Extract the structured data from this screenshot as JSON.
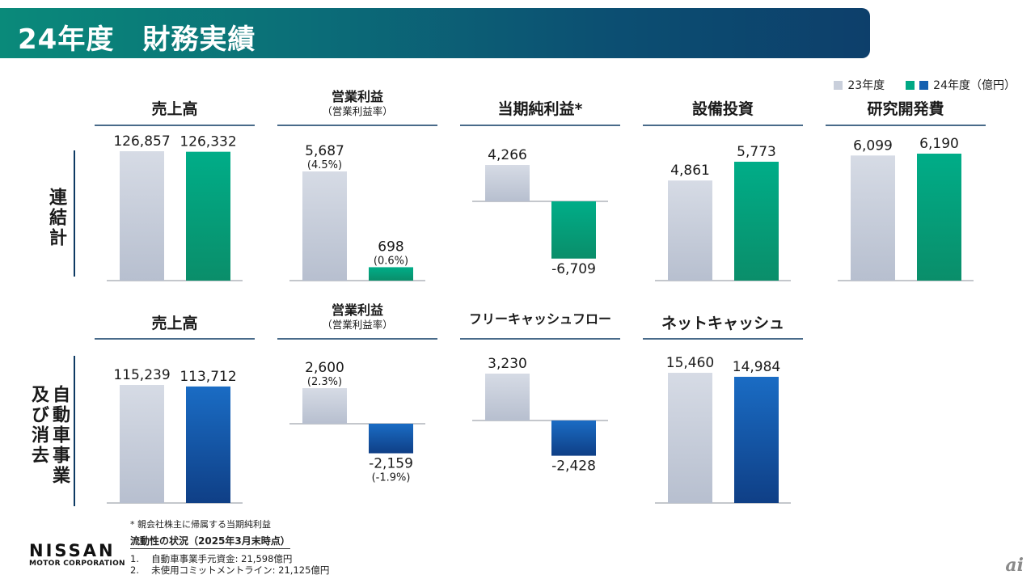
{
  "header": {
    "title": "24年度　財務実績"
  },
  "legend": {
    "fy23": "23年度",
    "fy24": "24年度（億円）"
  },
  "colors": {
    "fy23": "#c9cfdb",
    "fy24_consolidated": "#00a884",
    "fy24_auto": "#1560b0",
    "accent": "#0d3a63"
  },
  "rows": [
    {
      "label": "連結計"
    },
    {
      "label": "自動車事業\n及び消去"
    }
  ],
  "chart_data": [
    {
      "type": "bar",
      "title": "売上高",
      "subtitle": "",
      "categories": [
        "23年度",
        "24年度"
      ],
      "values": [
        126857,
        126332
      ],
      "labels": [
        "126,857",
        "126,332"
      ],
      "sublabels": [
        "",
        ""
      ]
    },
    {
      "type": "bar",
      "title": "営業利益",
      "subtitle": "（営業利益率）",
      "categories": [
        "23年度",
        "24年度"
      ],
      "values": [
        5687,
        698
      ],
      "labels": [
        "5,687",
        "698"
      ],
      "sublabels": [
        "(4.5%)",
        "(0.6%)"
      ]
    },
    {
      "type": "bar",
      "title": "当期純利益*",
      "subtitle": "",
      "categories": [
        "23年度",
        "24年度"
      ],
      "values": [
        4266,
        -6709
      ],
      "labels": [
        "4,266",
        "-6,709"
      ],
      "sublabels": [
        "",
        ""
      ]
    },
    {
      "type": "bar",
      "title": "設備投資",
      "subtitle": "",
      "categories": [
        "23年度",
        "24年度"
      ],
      "values": [
        4861,
        5773
      ],
      "labels": [
        "4,861",
        "5,773"
      ],
      "sublabels": [
        "",
        ""
      ]
    },
    {
      "type": "bar",
      "title": "研究開発費",
      "subtitle": "",
      "categories": [
        "23年度",
        "24年度"
      ],
      "values": [
        6099,
        6190
      ],
      "labels": [
        "6,099",
        "6,190"
      ],
      "sublabels": [
        "",
        ""
      ]
    },
    {
      "type": "bar",
      "title": "売上高",
      "subtitle": "",
      "categories": [
        "23年度",
        "24年度"
      ],
      "values": [
        115239,
        113712
      ],
      "labels": [
        "115,239",
        "113,712"
      ],
      "sublabels": [
        "",
        ""
      ]
    },
    {
      "type": "bar",
      "title": "営業利益",
      "subtitle": "（営業利益率）",
      "categories": [
        "23年度",
        "24年度"
      ],
      "values": [
        2600,
        -2159
      ],
      "labels": [
        "2,600",
        "-2,159"
      ],
      "sublabels": [
        "(2.3%)",
        "(-1.9%)"
      ]
    },
    {
      "type": "bar",
      "title": "フリーキャッシュフロー",
      "subtitle": "",
      "categories": [
        "23年度",
        "24年度"
      ],
      "values": [
        3230,
        -2428
      ],
      "labels": [
        "3,230",
        "-2,428"
      ],
      "sublabels": [
        "",
        ""
      ]
    },
    {
      "type": "bar",
      "title": "ネットキャッシュ",
      "subtitle": "",
      "categories": [
        "23年度",
        "24年度"
      ],
      "values": [
        15460,
        14984
      ],
      "labels": [
        "15,460",
        "14,984"
      ],
      "sublabels": [
        "",
        ""
      ]
    }
  ],
  "footnote": "* 親会社株主に帰属する当期純利益",
  "liquidity": {
    "title": "流動性の状況（2025年3月末時点）",
    "items": [
      "1.　 自動車事業手元資金: 21,598億円",
      "2.　 未使用コミットメントライン: 21,125億円"
    ]
  },
  "logo": {
    "main": "NISSAN",
    "sub": "MOTOR CORPORATION"
  },
  "watermark": "ai"
}
